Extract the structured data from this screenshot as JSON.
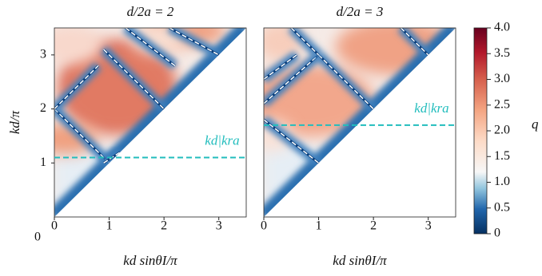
{
  "chart_data": [
    {
      "type": "heatmap",
      "title": "d/2a = 2",
      "xlabel": "kd sinθI/π",
      "ylabel": "kd/π",
      "xlim": [
        0,
        3.5
      ],
      "ylim": [
        0,
        3.5
      ],
      "xticks": [
        0,
        1,
        2,
        3
      ],
      "yticks": [
        1,
        2,
        3
      ],
      "origin_label": "0",
      "hline": {
        "value": 1.1,
        "label": "kd|kra",
        "color": "#22bdbd"
      }
    },
    {
      "type": "heatmap",
      "title": "d/2a = 3",
      "xlabel": "kd sinθI/π",
      "xlim": [
        0,
        3.5
      ],
      "ylim": [
        0,
        3.5
      ],
      "xticks": [
        0,
        1,
        2,
        3
      ],
      "hline": {
        "value": 1.7,
        "label": "kd|kra",
        "color": "#22bdbd"
      }
    }
  ],
  "colorbar": {
    "label": "q",
    "lim": [
      0,
      4
    ],
    "ticks": [
      0,
      0.5,
      {
        "value": 1,
        "label": "1.0"
      },
      1.5,
      {
        "value": 2,
        "label": "2.0"
      },
      2.5,
      {
        "value": 3,
        "label": "3.0"
      },
      3.5,
      {
        "value": 4,
        "label": "4.0"
      }
    ]
  }
}
